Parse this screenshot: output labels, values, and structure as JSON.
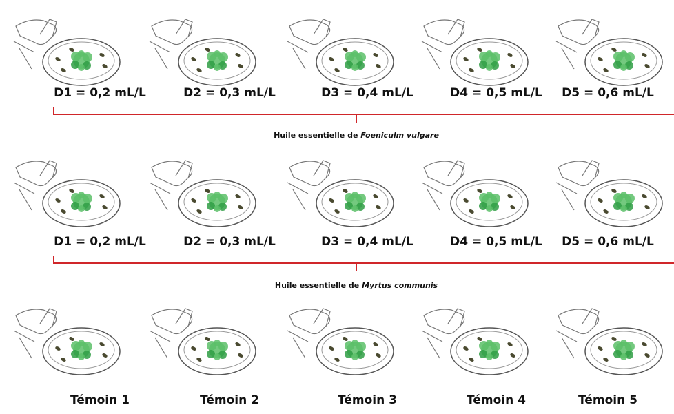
{
  "rows": [
    {
      "labels": [
        "D1 = 0,2 mL/L",
        "D2 = 0,3 mL/L",
        "D3 = 0,4 mL/L",
        "D4 = 0,5 mL/L",
        "D5 = 0,6 mL/L"
      ],
      "caption": {
        "prefix": "Huile essentielle de",
        "species": "Foeniculm vulgare"
      }
    },
    {
      "labels": [
        "D1 = 0,2 mL/L",
        "D2 = 0,3 mL/L",
        "D3 = 0,4 mL/L",
        "D4 = 0,5 mL/L",
        "D5 = 0,6 mL/L"
      ],
      "caption": {
        "prefix": "Huile essentielle de",
        "species": "Myrtus communis"
      }
    },
    {
      "labels": [
        "Témoin 1",
        "Témoin 2",
        "Témoin 3",
        "Témoin 4",
        "Témoin 5"
      ]
    }
  ]
}
